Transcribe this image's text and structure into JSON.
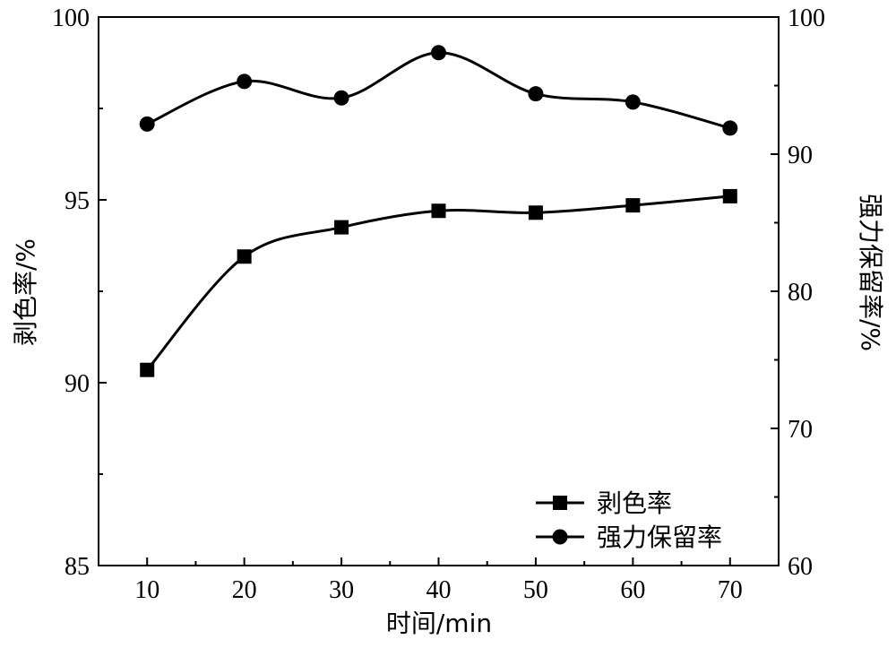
{
  "chart_data": {
    "type": "line",
    "x": [
      10,
      20,
      30,
      40,
      50,
      60,
      70
    ],
    "xlabel": "时间/min",
    "xlim": [
      5,
      75
    ],
    "xticks": [
      10,
      20,
      30,
      40,
      50,
      60,
      70
    ],
    "y_left": {
      "label": "剥色率/%",
      "lim": [
        85,
        100
      ],
      "ticks": [
        85,
        90,
        95,
        100
      ]
    },
    "y_right": {
      "label": "强力保留率/%",
      "lim": [
        60,
        100
      ],
      "ticks": [
        60,
        70,
        80,
        90,
        100
      ]
    },
    "series": [
      {
        "name": "剥色率",
        "axis": "left",
        "marker": "square",
        "color": "#000000",
        "values": [
          90.35,
          93.45,
          94.25,
          94.7,
          94.65,
          94.85,
          95.1
        ]
      },
      {
        "name": "强力保留率",
        "axis": "right",
        "marker": "circle",
        "color": "#000000",
        "values": [
          92.2,
          95.3,
          94.1,
          97.4,
          94.4,
          93.8,
          91.9
        ]
      }
    ],
    "legend": "bottom-right",
    "grid": false
  }
}
